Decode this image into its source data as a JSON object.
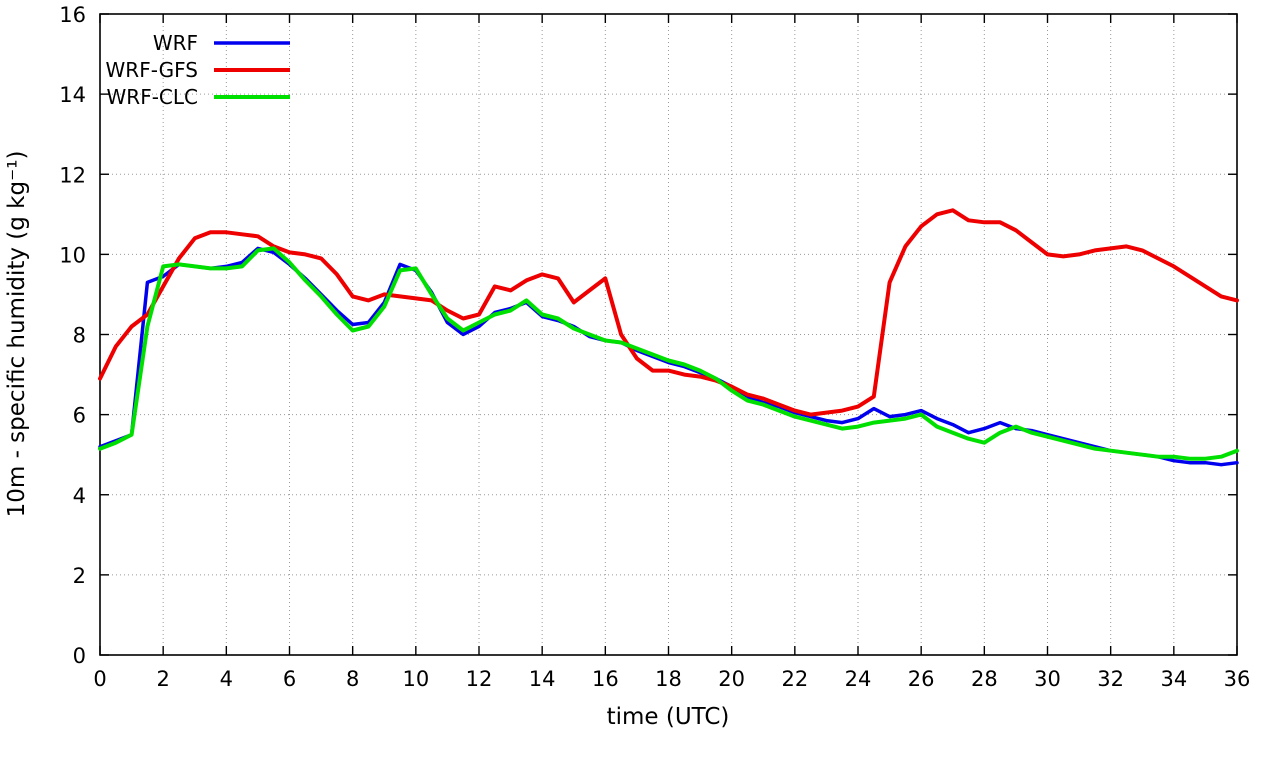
{
  "chart_data": {
    "type": "line",
    "title": "",
    "xlabel": "time (UTC)",
    "ylabel": "10m - specific humidity (g kg⁻¹)",
    "xlim": [
      0,
      36
    ],
    "ylim": [
      0,
      16
    ],
    "xticks": [
      0,
      2,
      4,
      6,
      8,
      10,
      12,
      14,
      16,
      18,
      20,
      22,
      24,
      26,
      28,
      30,
      32,
      34,
      36
    ],
    "yticks": [
      0,
      2,
      4,
      6,
      8,
      10,
      12,
      14,
      16
    ],
    "grid": true,
    "legend_position": "top-left",
    "x_start": 0,
    "x_step": 0.5,
    "series": [
      {
        "name": "WRF",
        "color": "#0000ee",
        "width": 3.5,
        "values": [
          5.2,
          5.35,
          5.5,
          9.3,
          9.45,
          9.75,
          9.7,
          9.65,
          9.7,
          9.8,
          10.15,
          10.05,
          9.75,
          9.4,
          9.0,
          8.6,
          8.25,
          8.3,
          8.8,
          9.75,
          9.6,
          9.05,
          8.3,
          8.0,
          8.2,
          8.55,
          8.65,
          8.8,
          8.45,
          8.35,
          8.2,
          7.95,
          7.85,
          7.8,
          7.6,
          7.45,
          7.3,
          7.2,
          7.05,
          6.9,
          6.7,
          6.45,
          6.3,
          6.2,
          6.05,
          5.95,
          5.85,
          5.8,
          5.9,
          6.15,
          5.95,
          6.0,
          6.1,
          5.9,
          5.75,
          5.55,
          5.65,
          5.8,
          5.65,
          5.6,
          5.5,
          5.4,
          5.3,
          5.2,
          5.1,
          5.05,
          5.0,
          4.95,
          4.85,
          4.8,
          4.8,
          4.75,
          4.8
        ]
      },
      {
        "name": "WRF-GFS",
        "color": "#ee0000",
        "width": 4,
        "values": [
          6.9,
          7.7,
          8.2,
          8.5,
          9.2,
          9.9,
          10.4,
          10.55,
          10.55,
          10.5,
          10.45,
          10.2,
          10.05,
          10.0,
          9.9,
          9.5,
          8.95,
          8.85,
          9.0,
          8.95,
          8.9,
          8.85,
          8.6,
          8.4,
          8.5,
          9.2,
          9.1,
          9.35,
          9.5,
          9.4,
          8.8,
          9.1,
          9.4,
          8.0,
          7.4,
          7.1,
          7.1,
          7.0,
          6.95,
          6.85,
          6.7,
          6.5,
          6.4,
          6.25,
          6.1,
          6.0,
          6.05,
          6.1,
          6.2,
          6.45,
          9.3,
          10.2,
          10.7,
          11.0,
          11.1,
          10.85,
          10.8,
          10.8,
          10.6,
          10.3,
          10.0,
          9.95,
          10.0,
          10.1,
          10.15,
          10.2,
          10.1,
          9.9,
          9.7,
          9.45,
          9.2,
          8.95,
          8.85
        ]
      },
      {
        "name": "WRF-CLC",
        "color": "#00e000",
        "width": 4,
        "values": [
          5.15,
          5.3,
          5.5,
          8.2,
          9.7,
          9.75,
          9.7,
          9.65,
          9.65,
          9.7,
          10.1,
          10.15,
          9.8,
          9.35,
          8.95,
          8.5,
          8.1,
          8.2,
          8.7,
          9.6,
          9.65,
          9.0,
          8.4,
          8.1,
          8.3,
          8.5,
          8.6,
          8.85,
          8.5,
          8.4,
          8.15,
          8.0,
          7.85,
          7.8,
          7.65,
          7.5,
          7.35,
          7.25,
          7.1,
          6.9,
          6.6,
          6.35,
          6.25,
          6.1,
          5.95,
          5.85,
          5.75,
          5.65,
          5.7,
          5.8,
          5.85,
          5.9,
          6.0,
          5.7,
          5.55,
          5.4,
          5.3,
          5.55,
          5.7,
          5.55,
          5.45,
          5.35,
          5.25,
          5.15,
          5.1,
          5.05,
          5.0,
          4.95,
          4.95,
          4.9,
          4.9,
          4.95,
          5.1
        ]
      }
    ]
  }
}
